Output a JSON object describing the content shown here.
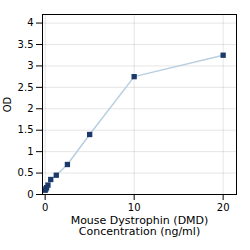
{
  "chart_data": {
    "type": "line",
    "x": [
      0,
      0.078,
      0.156,
      0.313,
      0.625,
      1.25,
      2.5,
      5,
      10,
      20
    ],
    "series": [
      {
        "type": "line",
        "color": "#b8cfe0",
        "values": [
          0.1,
          0.13,
          0.16,
          0.22,
          0.35,
          0.45,
          0.7,
          1.4,
          2.75,
          3.25
        ]
      },
      {
        "type": "scatter",
        "color": "#1b3a6b",
        "marker": "square",
        "values": [
          0.1,
          0.13,
          0.16,
          0.22,
          0.35,
          0.45,
          0.7,
          1.4,
          2.75,
          3.25
        ]
      }
    ],
    "xlabel": "Mouse Dystrophin (DMD)\nConcentration (ng/ml)",
    "ylabel": "OD",
    "xlim": [
      -0.3,
      21.5
    ],
    "ylim": [
      0,
      4.2
    ],
    "xticks": [
      0,
      10,
      20
    ],
    "yticks": [
      0,
      0.5,
      1,
      1.5,
      2,
      2.5,
      3,
      3.5,
      4
    ],
    "grid": true
  }
}
